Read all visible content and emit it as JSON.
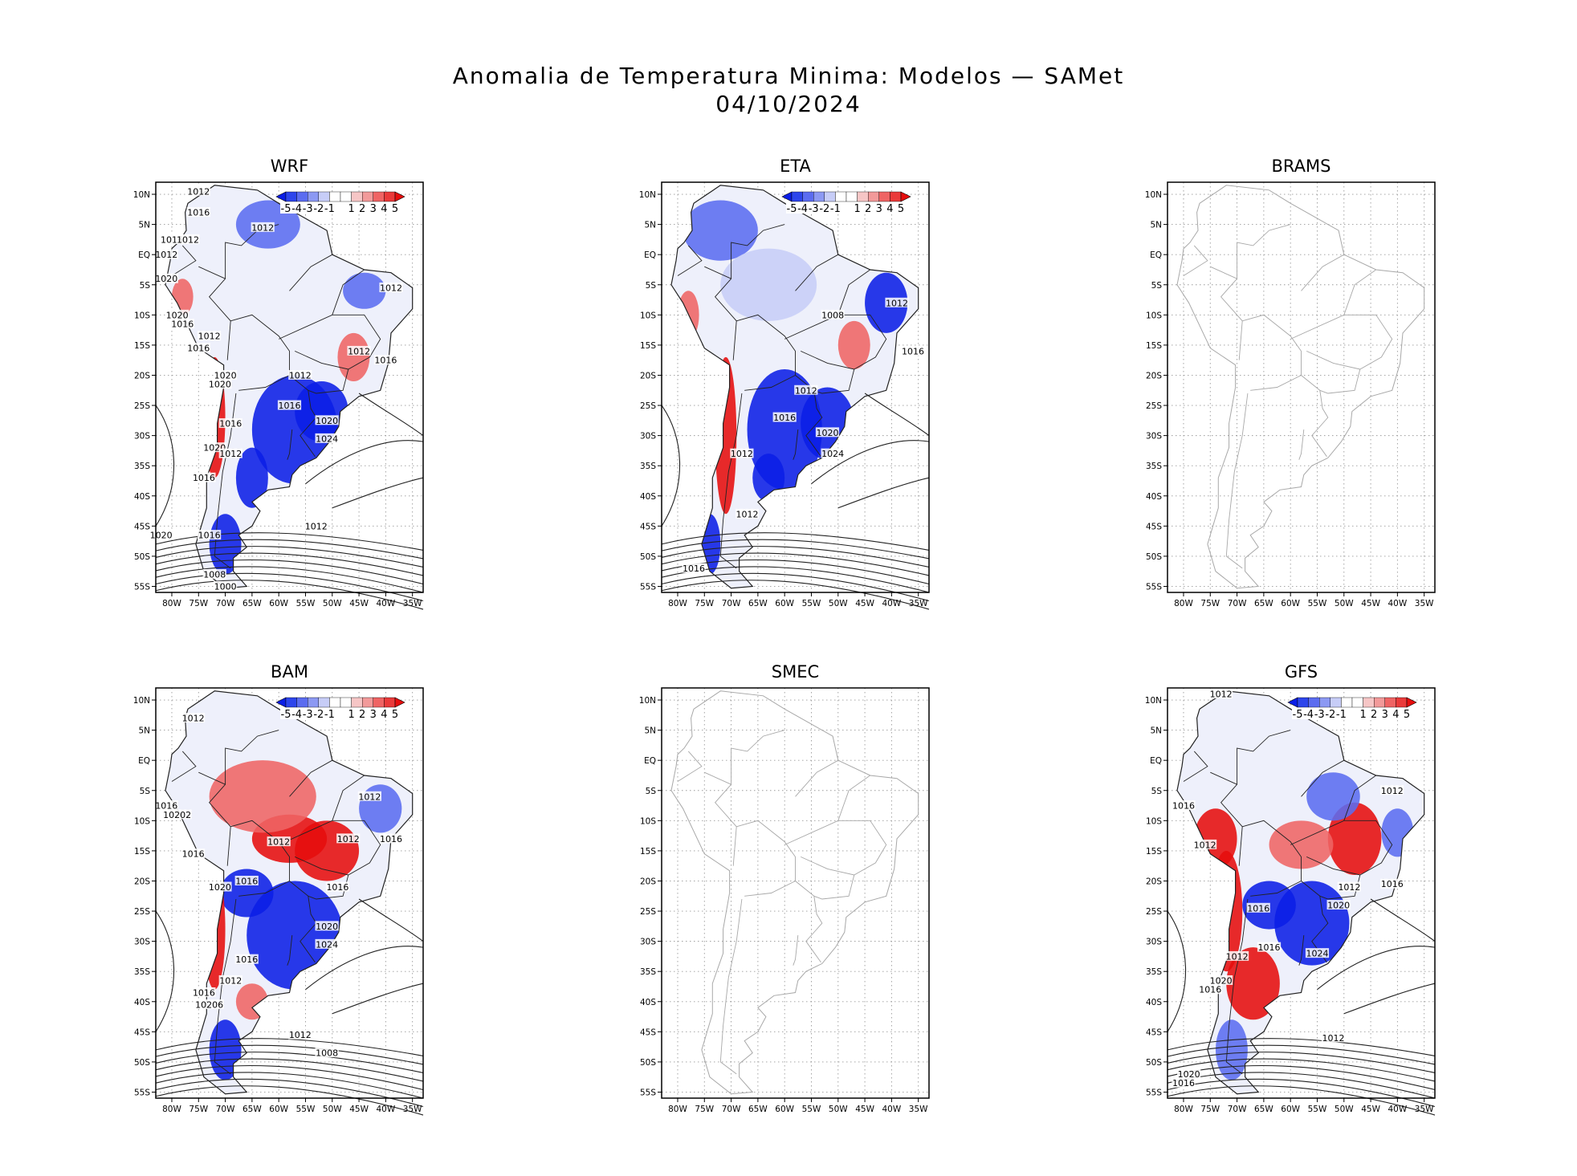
{
  "title_line1": "Anomalia de Temperatura Minima: Modelos — SAMet",
  "title_line2": "04/10/2024",
  "colors": {
    "cold_strong": "#0b1ee6",
    "cold_mid": "#5b6cf0",
    "cold_light": "#c7cdf7",
    "neutral": "#ffffff",
    "warm_light": "#f6c6c6",
    "warm_mid": "#ef6464",
    "warm_strong": "#e60d0d",
    "coast_outline": "#222222",
    "empty_outline": "#a8a8a8",
    "isobar": "#222222",
    "grid": "#9a9a9a"
  },
  "chart_data": [
    {
      "type": "heatmap",
      "title": "WRF",
      "has_data": true,
      "xlim": [
        -83,
        -33
      ],
      "ylim": [
        -56,
        12
      ],
      "x_ticks": [
        "80W",
        "75W",
        "70W",
        "65W",
        "60W",
        "55W",
        "50W",
        "45W",
        "40W",
        "35W"
      ],
      "y_ticks": [
        "10N",
        "5N",
        "EQ",
        "5S",
        "10S",
        "15S",
        "20S",
        "25S",
        "30S",
        "35S",
        "40S",
        "45S",
        "50S",
        "55S"
      ],
      "colorbar_labels": [
        "-5",
        "-4",
        "-3",
        "-2",
        "-1",
        "1",
        "2",
        "3",
        "4",
        "5"
      ],
      "anomaly_patches": [
        {
          "lon": -57,
          "lat": -29,
          "rx": 8,
          "ry": 9,
          "anomaly": -5
        },
        {
          "lon": -52,
          "lat": -26,
          "rx": 5,
          "ry": 5,
          "anomaly": -5
        },
        {
          "lon": -65,
          "lat": -37,
          "rx": 3,
          "ry": 5,
          "anomaly": -4
        },
        {
          "lon": -70,
          "lat": -48,
          "rx": 3,
          "ry": 5,
          "anomaly": -5
        },
        {
          "lon": -62,
          "lat": 5,
          "rx": 6,
          "ry": 4,
          "anomaly": -2
        },
        {
          "lon": -72,
          "lat": -27,
          "rx": 2,
          "ry": 10,
          "anomaly": 4
        },
        {
          "lon": -46,
          "lat": -17,
          "rx": 3,
          "ry": 4,
          "anomaly": 2
        },
        {
          "lon": -78,
          "lat": -7,
          "rx": 2,
          "ry": 3,
          "anomaly": 3
        },
        {
          "lon": -44,
          "lat": -6,
          "rx": 4,
          "ry": 3,
          "anomaly": -2
        }
      ],
      "isobar_labels": [
        {
          "text": "1012",
          "lon": -75,
          "lat": 10.5
        },
        {
          "text": "1016",
          "lon": -75,
          "lat": 7
        },
        {
          "text": "1012",
          "lon": -63,
          "lat": 4.5
        },
        {
          "text": "1016",
          "lon": -80,
          "lat": 2.5
        },
        {
          "text": "1012",
          "lon": -77,
          "lat": 2.5
        },
        {
          "text": "1012",
          "lon": -81,
          "lat": 0
        },
        {
          "text": "1020",
          "lon": -81,
          "lat": -4
        },
        {
          "text": "1012",
          "lon": -39,
          "lat": -5.5
        },
        {
          "text": "1020",
          "lon": -79,
          "lat": -10
        },
        {
          "text": "1016",
          "lon": -78,
          "lat": -11.5
        },
        {
          "text": "1012",
          "lon": -73,
          "lat": -13.5
        },
        {
          "text": "1016",
          "lon": -75,
          "lat": -15.5
        },
        {
          "text": "1012",
          "lon": -45,
          "lat": -16
        },
        {
          "text": "1016",
          "lon": -40,
          "lat": -17.5
        },
        {
          "text": "1020",
          "lon": -70,
          "lat": -20
        },
        {
          "text": "1012",
          "lon": -56,
          "lat": -20
        },
        {
          "text": "1020",
          "lon": -71,
          "lat": -21.5
        },
        {
          "text": "1016",
          "lon": -58,
          "lat": -25
        },
        {
          "text": "1016",
          "lon": -69,
          "lat": -28
        },
        {
          "text": "1020",
          "lon": -51,
          "lat": -27.5
        },
        {
          "text": "1024",
          "lon": -51,
          "lat": -30.5
        },
        {
          "text": "1020",
          "lon": -72,
          "lat": -32
        },
        {
          "text": "1012",
          "lon": -69,
          "lat": -33
        },
        {
          "text": "1016",
          "lon": -74,
          "lat": -37
        },
        {
          "text": "1012",
          "lon": -53,
          "lat": -45
        },
        {
          "text": "1020",
          "lon": -82,
          "lat": -46.5
        },
        {
          "text": "1016",
          "lon": -73,
          "lat": -46.5
        },
        {
          "text": "1008",
          "lon": -72,
          "lat": -53
        },
        {
          "text": "1000",
          "lon": -70,
          "lat": -55
        }
      ]
    },
    {
      "type": "heatmap",
      "title": "ETA",
      "has_data": true,
      "xlim": [
        -83,
        -33
      ],
      "ylim": [
        -56,
        12
      ],
      "x_ticks": [
        "80W",
        "75W",
        "70W",
        "65W",
        "60W",
        "55W",
        "50W",
        "45W",
        "40W",
        "35W"
      ],
      "y_ticks": [
        "10N",
        "5N",
        "EQ",
        "5S",
        "10S",
        "15S",
        "20S",
        "25S",
        "30S",
        "35S",
        "40S",
        "45S",
        "50S",
        "55S"
      ],
      "colorbar_labels": [
        "-5",
        "-4",
        "-3",
        "-2",
        "-1",
        "1",
        "2",
        "3",
        "4",
        "5"
      ],
      "anomaly_patches": [
        {
          "lon": -60,
          "lat": -29,
          "rx": 7,
          "ry": 10,
          "anomaly": -5
        },
        {
          "lon": -52,
          "lat": -28,
          "rx": 5,
          "ry": 6,
          "anomaly": -5
        },
        {
          "lon": -63,
          "lat": -37,
          "rx": 3,
          "ry": 4,
          "anomaly": -5
        },
        {
          "lon": -72,
          "lat": 4,
          "rx": 7,
          "ry": 5,
          "anomaly": -3
        },
        {
          "lon": -41,
          "lat": -8,
          "rx": 4,
          "ry": 5,
          "anomaly": -4
        },
        {
          "lon": -63,
          "lat": -5,
          "rx": 9,
          "ry": 6,
          "anomaly": -1
        },
        {
          "lon": -71,
          "lat": -30,
          "rx": 2,
          "ry": 13,
          "anomaly": 5
        },
        {
          "lon": -47,
          "lat": -15,
          "rx": 3,
          "ry": 4,
          "anomaly": 3
        },
        {
          "lon": -74,
          "lat": -48,
          "rx": 2,
          "ry": 5,
          "anomaly": -4
        },
        {
          "lon": -78,
          "lat": -10,
          "rx": 2,
          "ry": 4,
          "anomaly": 2
        }
      ],
      "isobar_labels": [
        {
          "text": "1008",
          "lon": -51,
          "lat": -10
        },
        {
          "text": "1012",
          "lon": -39,
          "lat": -8
        },
        {
          "text": "1016",
          "lon": -36,
          "lat": -16
        },
        {
          "text": "1012",
          "lon": -56,
          "lat": -22.5
        },
        {
          "text": "1016",
          "lon": -60,
          "lat": -27
        },
        {
          "text": "1020",
          "lon": -52,
          "lat": -29.5
        },
        {
          "text": "1024",
          "lon": -51,
          "lat": -33
        },
        {
          "text": "1012",
          "lon": -68,
          "lat": -33
        },
        {
          "text": "1012",
          "lon": -67,
          "lat": -43
        },
        {
          "text": "1016",
          "lon": -77,
          "lat": -52
        }
      ]
    },
    {
      "type": "heatmap",
      "title": "BRAMS",
      "has_data": false,
      "xlim": [
        -83,
        -33
      ],
      "ylim": [
        -56,
        12
      ],
      "x_ticks": [
        "80W",
        "75W",
        "70W",
        "65W",
        "60W",
        "55W",
        "50W",
        "45W",
        "40W",
        "35W"
      ],
      "y_ticks": [
        "10N",
        "5N",
        "EQ",
        "5S",
        "10S",
        "15S",
        "20S",
        "25S",
        "30S",
        "35S",
        "40S",
        "45S",
        "50S",
        "55S"
      ],
      "colorbar_labels": [],
      "anomaly_patches": [],
      "isobar_labels": []
    },
    {
      "type": "heatmap",
      "title": "BAM",
      "has_data": true,
      "xlim": [
        -83,
        -33
      ],
      "ylim": [
        -56,
        12
      ],
      "x_ticks": [
        "80W",
        "75W",
        "70W",
        "65W",
        "60W",
        "55W",
        "50W",
        "45W",
        "40W",
        "35W"
      ],
      "y_ticks": [
        "10N",
        "5N",
        "EQ",
        "5S",
        "10S",
        "15S",
        "20S",
        "25S",
        "30S",
        "35S",
        "40S",
        "45S",
        "50S",
        "55S"
      ],
      "colorbar_labels": [
        "-5",
        "-4",
        "-3",
        "-2",
        "-1",
        "1",
        "2",
        "3",
        "4",
        "5"
      ],
      "anomaly_patches": [
        {
          "lon": -51,
          "lat": -15,
          "rx": 6,
          "ry": 5,
          "anomaly": 5
        },
        {
          "lon": -58,
          "lat": -13,
          "rx": 7,
          "ry": 4,
          "anomaly": 4
        },
        {
          "lon": -63,
          "lat": -6,
          "rx": 10,
          "ry": 6,
          "anomaly": 2
        },
        {
          "lon": -57,
          "lat": -29,
          "rx": 9,
          "ry": 9,
          "anomaly": -5
        },
        {
          "lon": -66,
          "lat": -22,
          "rx": 5,
          "ry": 4,
          "anomaly": -4
        },
        {
          "lon": -70,
          "lat": -48,
          "rx": 3,
          "ry": 5,
          "anomaly": -5
        },
        {
          "lon": -41,
          "lat": -8,
          "rx": 4,
          "ry": 4,
          "anomaly": -3
        },
        {
          "lon": -72,
          "lat": -28,
          "rx": 2,
          "ry": 10,
          "anomaly": 5
        },
        {
          "lon": -65,
          "lat": -40,
          "rx": 3,
          "ry": 3,
          "anomaly": 2
        }
      ],
      "isobar_labels": [
        {
          "text": "1012",
          "lon": -76,
          "lat": 7
        },
        {
          "text": "1012",
          "lon": -43,
          "lat": -6
        },
        {
          "text": "1016",
          "lon": -81,
          "lat": -7.5
        },
        {
          "text": "10202",
          "lon": -79,
          "lat": -9
        },
        {
          "text": "1012",
          "lon": -60,
          "lat": -13.5
        },
        {
          "text": "1012",
          "lon": -47,
          "lat": -13
        },
        {
          "text": "1016",
          "lon": -39,
          "lat": -13
        },
        {
          "text": "1016",
          "lon": -76,
          "lat": -15.5
        },
        {
          "text": "1016",
          "lon": -66,
          "lat": -20
        },
        {
          "text": "1020",
          "lon": -71,
          "lat": -21
        },
        {
          "text": "1016",
          "lon": -49,
          "lat": -21
        },
        {
          "text": "1020",
          "lon": -51,
          "lat": -27.5
        },
        {
          "text": "1024",
          "lon": -51,
          "lat": -30.5
        },
        {
          "text": "1016",
          "lon": -66,
          "lat": -33
        },
        {
          "text": "1012",
          "lon": -69,
          "lat": -36.5
        },
        {
          "text": "1016",
          "lon": -74,
          "lat": -38.5
        },
        {
          "text": "10206",
          "lon": -73,
          "lat": -40.5
        },
        {
          "text": "1012",
          "lon": -56,
          "lat": -45.5
        },
        {
          "text": "1008",
          "lon": -51,
          "lat": -48.5
        }
      ]
    },
    {
      "type": "heatmap",
      "title": "SMEC",
      "has_data": false,
      "xlim": [
        -83,
        -33
      ],
      "ylim": [
        -56,
        12
      ],
      "x_ticks": [
        "80W",
        "75W",
        "70W",
        "65W",
        "60W",
        "55W",
        "50W",
        "45W",
        "40W",
        "35W"
      ],
      "y_ticks": [
        "10N",
        "5N",
        "EQ",
        "5S",
        "10S",
        "15S",
        "20S",
        "25S",
        "30S",
        "35S",
        "40S",
        "45S",
        "50S",
        "55S"
      ],
      "colorbar_labels": [],
      "anomaly_patches": [],
      "isobar_labels": []
    },
    {
      "type": "heatmap",
      "title": "GFS",
      "has_data": true,
      "xlim": [
        -83,
        -33
      ],
      "ylim": [
        -56,
        12
      ],
      "x_ticks": [
        "80W",
        "75W",
        "70W",
        "65W",
        "60W",
        "55W",
        "50W",
        "45W",
        "40W",
        "35W"
      ],
      "y_ticks": [
        "10N",
        "5N",
        "EQ",
        "5S",
        "10S",
        "15S",
        "20S",
        "25S",
        "30S",
        "35S",
        "40S",
        "45S",
        "50S",
        "55S"
      ],
      "colorbar_labels": [
        "-5",
        "-4",
        "-3",
        "-2",
        "-1",
        "1",
        "2",
        "3",
        "4",
        "5"
      ],
      "anomaly_patches": [
        {
          "lon": -67,
          "lat": -37,
          "rx": 5,
          "ry": 6,
          "anomaly": 5
        },
        {
          "lon": -72,
          "lat": -25,
          "rx": 3,
          "ry": 10,
          "anomaly": 5
        },
        {
          "lon": -74,
          "lat": -13,
          "rx": 4,
          "ry": 5,
          "anomaly": 4
        },
        {
          "lon": -48,
          "lat": -13,
          "rx": 5,
          "ry": 6,
          "anomaly": 5
        },
        {
          "lon": -58,
          "lat": -14,
          "rx": 6,
          "ry": 4,
          "anomaly": 3
        },
        {
          "lon": -56,
          "lat": -27,
          "rx": 7,
          "ry": 7,
          "anomaly": -5
        },
        {
          "lon": -64,
          "lat": -24,
          "rx": 5,
          "ry": 4,
          "anomaly": -4
        },
        {
          "lon": -52,
          "lat": -6,
          "rx": 5,
          "ry": 4,
          "anomaly": -2
        },
        {
          "lon": -71,
          "lat": -48,
          "rx": 3,
          "ry": 5,
          "anomaly": -3
        },
        {
          "lon": -40,
          "lat": -12,
          "rx": 3,
          "ry": 4,
          "anomaly": -3
        }
      ],
      "isobar_labels": [
        {
          "text": "1012",
          "lon": -73,
          "lat": 11
        },
        {
          "text": "1012",
          "lon": -41,
          "lat": -5
        },
        {
          "text": "1016",
          "lon": -80,
          "lat": -7.5
        },
        {
          "text": "1012",
          "lon": -76,
          "lat": -14
        },
        {
          "text": "1012",
          "lon": -49,
          "lat": -21
        },
        {
          "text": "1016",
          "lon": -41,
          "lat": -20.5
        },
        {
          "text": "1020",
          "lon": -51,
          "lat": -24
        },
        {
          "text": "1016",
          "lon": -66,
          "lat": -24.5
        },
        {
          "text": "1016",
          "lon": -64,
          "lat": -31
        },
        {
          "text": "1024",
          "lon": -55,
          "lat": -32
        },
        {
          "text": "1012",
          "lon": -70,
          "lat": -32.5
        },
        {
          "text": "1020",
          "lon": -73,
          "lat": -36.5
        },
        {
          "text": "1016",
          "lon": -75,
          "lat": -38
        },
        {
          "text": "1012",
          "lon": -52,
          "lat": -46
        },
        {
          "text": "1020",
          "lon": -79,
          "lat": -52
        },
        {
          "text": "1016",
          "lon": -80,
          "lat": -53.5
        }
      ]
    }
  ]
}
